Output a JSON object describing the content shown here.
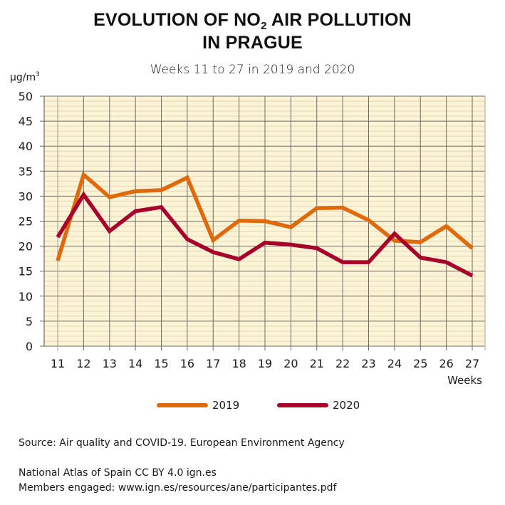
{
  "header": {
    "title_part1": "EVOLUTION OF NO",
    "title_sub": "2",
    "title_part2": " AIR POLLUTION",
    "title_line2": "IN PRAGUE",
    "subtitle": "Weeks 11 to 27 in 2019 and 2020",
    "unit_base": "µg/m",
    "unit_sup": "3"
  },
  "colors": {
    "plot_background": "#fdf3d5",
    "major_grid": "#6e6a66",
    "minor_grid": "#e6dcc4",
    "series_2019": "#e06a0b",
    "series_2020": "#a8002a"
  },
  "chart_data": {
    "type": "line",
    "title": "EVOLUTION OF NO2 AIR POLLUTION IN PRAGUE",
    "subtitle": "Weeks 11 to 27 in 2019 and 2020",
    "xlabel": "Weeks",
    "ylabel": "µg/m3",
    "x": [
      11,
      12,
      13,
      14,
      15,
      16,
      17,
      18,
      19,
      20,
      21,
      22,
      23,
      24,
      25,
      26,
      27
    ],
    "xtick_labels": [
      "11",
      "12",
      "13",
      "14",
      "15",
      "16",
      "17",
      "18",
      "19",
      "20",
      "21",
      "22",
      "23",
      "24",
      "25",
      "26",
      "27"
    ],
    "ylim": [
      0,
      50
    ],
    "yticks": [
      0,
      5,
      10,
      15,
      20,
      25,
      30,
      35,
      40,
      45,
      50
    ],
    "ytick_labels": [
      "0",
      "5",
      "10",
      "15",
      "20",
      "25",
      "30",
      "35",
      "40",
      "45",
      "50"
    ],
    "grid": true,
    "legend_position": "bottom-center",
    "series": [
      {
        "name": "2019",
        "color": "#e06a0b",
        "values": [
          17.1,
          34.3,
          29.8,
          31.0,
          31.2,
          33.7,
          21.2,
          25.1,
          25.0,
          23.8,
          27.6,
          27.7,
          25.2,
          21.1,
          20.8,
          24.0,
          19.6
        ]
      },
      {
        "name": "2020",
        "color": "#a8002a",
        "values": [
          21.8,
          30.3,
          23.0,
          27.0,
          27.8,
          21.4,
          18.8,
          17.4,
          20.7,
          20.3,
          19.6,
          16.8,
          16.8,
          22.5,
          17.7,
          16.8,
          14.1
        ]
      }
    ]
  },
  "footer": {
    "source": "Source: Air quality and COVID-19. European Environment Agency",
    "atlas": "National Atlas of Spain CC BY 4.0 ign.es",
    "members": "Members engaged: www.ign.es/resources/ane/participantes.pdf"
  }
}
